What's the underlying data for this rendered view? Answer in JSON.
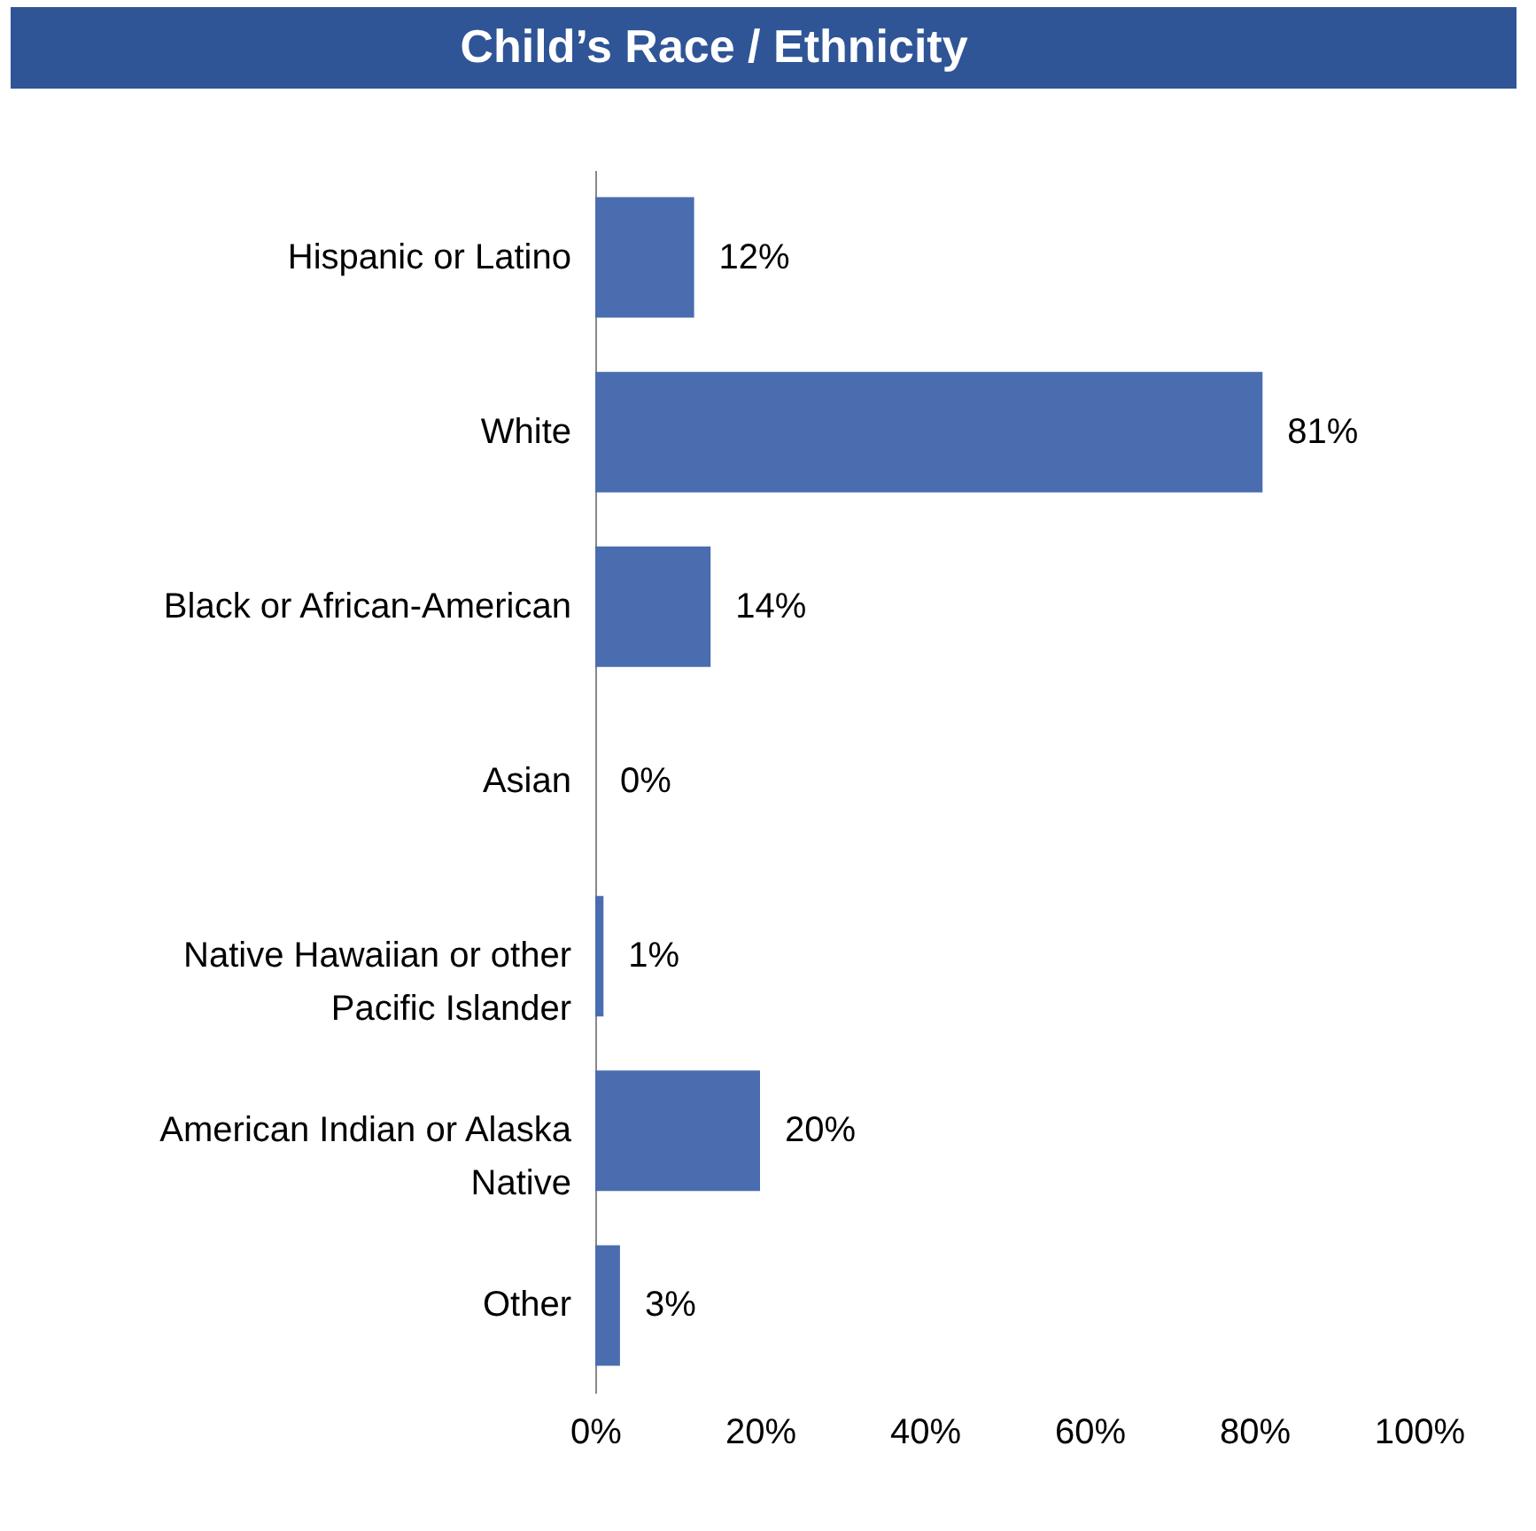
{
  "chart_data": {
    "type": "bar",
    "orientation": "horizontal",
    "title": "Child’s Race / Ethnicity",
    "categories": [
      "Hispanic or Latino",
      "White",
      "Black or African-American",
      "Asian",
      "Native Hawaiian or other Pacific Islander",
      "American Indian or Alaska Native",
      "Other"
    ],
    "values": [
      12,
      81,
      14,
      0,
      1,
      20,
      3
    ],
    "value_labels": [
      "12%",
      "81%",
      "14%",
      "0%",
      "1%",
      "20%",
      "3%"
    ],
    "color": "#4a6db0",
    "xlim": [
      0,
      100
    ],
    "xticks": [
      {
        "value": 0,
        "label": "0%"
      },
      {
        "value": 20,
        "label": "20%"
      },
      {
        "value": 40,
        "label": "40%"
      },
      {
        "value": 60,
        "label": "60%"
      },
      {
        "value": 80,
        "label": "80%"
      },
      {
        "value": 100,
        "label": "100%"
      }
    ],
    "grid": false
  }
}
